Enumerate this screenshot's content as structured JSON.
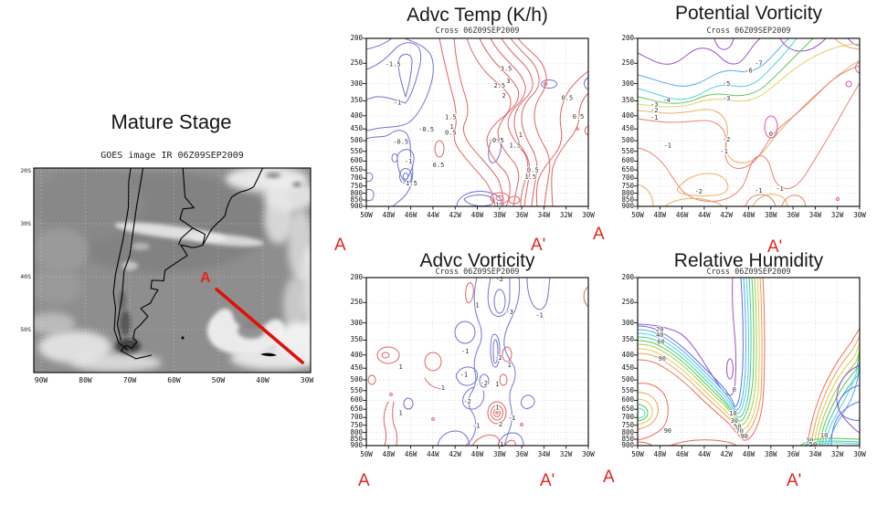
{
  "chart_data": {
    "satellite": {
      "type": "satellite-image",
      "panel_label": "Mature Stage",
      "title": "GOES image IR 06Z09SEP2009",
      "a_label": "A",
      "x_ticks": [
        {
          "label": "90W",
          "lon": 90
        },
        {
          "label": "80W",
          "lon": 80
        },
        {
          "label": "70W",
          "lon": 70
        },
        {
          "label": "60W",
          "lon": 60
        },
        {
          "label": "50W",
          "lon": 50
        },
        {
          "label": "40W",
          "lon": 40
        },
        {
          "label": "30W",
          "lon": 30
        }
      ],
      "y_ticks": [
        {
          "label": "20S",
          "lat": 20
        },
        {
          "label": "30S",
          "lat": 30
        },
        {
          "label": "40S",
          "lat": 40
        },
        {
          "label": "50S",
          "lat": 50
        }
      ],
      "line": {
        "color": "#e01008",
        "from": {
          "lon": 50.4,
          "lat": 42.4
        },
        "to": {
          "lon": 31.0,
          "lat": 56.2
        }
      }
    },
    "cross_axes": {
      "x_ticks": [
        {
          "label": "50W",
          "lon": 50
        },
        {
          "label": "48W",
          "lon": 48
        },
        {
          "label": "46W",
          "lon": 46
        },
        {
          "label": "44W",
          "lon": 44
        },
        {
          "label": "42W",
          "lon": 42
        },
        {
          "label": "40W",
          "lon": 40
        },
        {
          "label": "38W",
          "lon": 38
        },
        {
          "label": "36W",
          "lon": 36
        },
        {
          "label": "34W",
          "lon": 34
        },
        {
          "label": "32W",
          "lon": 32
        },
        {
          "label": "30W",
          "lon": 30
        }
      ],
      "y_ticks": [
        200,
        250,
        300,
        350,
        400,
        450,
        500,
        550,
        600,
        650,
        700,
        750,
        800,
        850,
        900
      ]
    },
    "advc_temp": {
      "type": "contour-cross-section",
      "title": "Advc Temp (K/h)",
      "subtitle": "Cross 06Z09SEP2009",
      "endpoint_left": "A",
      "endpoint_right": "A'",
      "levels": {
        "-1.5": "#7373d2",
        "-1": "#7373d2",
        "-0.5": "#7373d2",
        "0.5": "#e06363",
        "1": "#e06363",
        "1.5": "#e06363",
        "2": "#e06363",
        "2.5": "#e06363",
        "3": "#e06363",
        "3.5": "#e06363"
      },
      "contour_labels": [
        {
          "v": "-1.5",
          "lon": 47.6,
          "p": 252
        },
        {
          "v": "-1",
          "lon": 47.2,
          "p": 355
        },
        {
          "v": "-0.5",
          "lon": 44.6,
          "p": 452
        },
        {
          "v": "-0.5",
          "lon": 46.9,
          "p": 505
        },
        {
          "v": "-1",
          "lon": 46.2,
          "p": 600
        },
        {
          "v": "-1.5",
          "lon": 46.1,
          "p": 730
        },
        {
          "v": "0.5",
          "lon": 43.5,
          "p": 620
        },
        {
          "v": "1.5",
          "lon": 42.4,
          "p": 405
        },
        {
          "v": "1",
          "lon": 42.3,
          "p": 440
        },
        {
          "v": "0.5",
          "lon": 42.4,
          "p": 465
        },
        {
          "v": "2",
          "lon": 37.6,
          "p": 333
        },
        {
          "v": "2.5",
          "lon": 38.0,
          "p": 305
        },
        {
          "v": "3",
          "lon": 37.2,
          "p": 293
        },
        {
          "v": "3.5",
          "lon": 37.4,
          "p": 262
        },
        {
          "v": "-0.5",
          "lon": 38.3,
          "p": 497
        },
        {
          "v": "1",
          "lon": 36.1,
          "p": 475
        },
        {
          "v": "1.5",
          "lon": 36.6,
          "p": 520
        },
        {
          "v": "0.5",
          "lon": 35.0,
          "p": 650
        },
        {
          "v": "1.5",
          "lon": 35.2,
          "p": 692
        },
        {
          "v": "0.5",
          "lon": 31.9,
          "p": 340
        },
        {
          "v": "0.5",
          "lon": 30.9,
          "p": 402
        },
        {
          "v": "1",
          "lon": 38.2,
          "p": 885
        }
      ]
    },
    "pot_vort": {
      "type": "contour-cross-section",
      "title": "Potential Vorticity",
      "subtitle": "Cross 06Z09SEP2009",
      "endpoint_left": "A",
      "endpoint_right": "A'",
      "levels": {
        "-7": "#9b50d0",
        "-6": "#5ba8f0",
        "-5": "#52cfe0",
        "-4": "#5bc85b",
        "-3": "#e6d05e",
        "-2": "#eab066",
        "-1": "#ef8078",
        "0": "#e84fa8"
      },
      "contour_labels": [
        {
          "v": "-7",
          "lon": 39.1,
          "p": 250
        },
        {
          "v": "-6",
          "lon": 40.0,
          "p": 267
        },
        {
          "v": "-5",
          "lon": 42.0,
          "p": 300
        },
        {
          "v": "-4",
          "lon": 47.4,
          "p": 348
        },
        {
          "v": "-3",
          "lon": 48.5,
          "p": 361
        },
        {
          "v": "-2",
          "lon": 48.5,
          "p": 381
        },
        {
          "v": "-1",
          "lon": 48.5,
          "p": 406
        },
        {
          "v": "-3",
          "lon": 42.0,
          "p": 342
        },
        {
          "v": "-2",
          "lon": 42.0,
          "p": 494
        },
        {
          "v": "-1",
          "lon": 42.2,
          "p": 550
        },
        {
          "v": "-1",
          "lon": 47.3,
          "p": 520
        },
        {
          "v": "0",
          "lon": 38.0,
          "p": 470
        },
        {
          "v": "-2",
          "lon": 44.5,
          "p": 787
        },
        {
          "v": "-1",
          "lon": 39.1,
          "p": 782
        },
        {
          "v": "-1",
          "lon": 37.2,
          "p": 768
        }
      ]
    },
    "advc_vort": {
      "type": "contour-cross-section",
      "title": "Advc Vorticity",
      "subtitle": "Cross 06Z09SEP2009",
      "endpoint_left": "A",
      "endpoint_right": "A'",
      "levels": {
        "-3": "#7373d2",
        "-2": "#7373d2",
        "-1": "#7373d2",
        "1": "#e06363",
        "2": "#e06363",
        "3": "#e06363"
      },
      "contour_labels": [
        {
          "v": "-2",
          "lon": 38.0,
          "p": 203
        },
        {
          "v": "1",
          "lon": 40.0,
          "p": 256
        },
        {
          "v": "-3",
          "lon": 37.1,
          "p": 272
        },
        {
          "v": "-1",
          "lon": 34.4,
          "p": 280
        },
        {
          "v": "-1",
          "lon": 41.1,
          "p": 386
        },
        {
          "v": "-2",
          "lon": 38.1,
          "p": 410
        },
        {
          "v": "1",
          "lon": 37.1,
          "p": 437
        },
        {
          "v": "1",
          "lon": 46.9,
          "p": 444
        },
        {
          "v": "-1",
          "lon": 41.2,
          "p": 477
        },
        {
          "v": "-2",
          "lon": 39.4,
          "p": 515
        },
        {
          "v": "1",
          "lon": 38.2,
          "p": 518
        },
        {
          "v": "1",
          "lon": 43.1,
          "p": 537
        },
        {
          "v": "-2",
          "lon": 40.9,
          "p": 607
        },
        {
          "v": "1",
          "lon": 46.9,
          "p": 672
        },
        {
          "v": "1",
          "lon": 38.2,
          "p": 640
        },
        {
          "v": "-1",
          "lon": 36.9,
          "p": 702
        },
        {
          "v": "2",
          "lon": 37.9,
          "p": 743
        },
        {
          "v": "-1",
          "lon": 40.1,
          "p": 752
        },
        {
          "v": "1",
          "lon": 37.8,
          "p": 890
        }
      ]
    },
    "rel_hum": {
      "type": "contour-cross-section",
      "title": "Relative Humidity",
      "subtitle": "Cross 06Z09SEP2009",
      "endpoint_left": "A",
      "endpoint_right": "A'",
      "levels": {
        "0": "#9b50d0",
        "10": "#5570e8",
        "20": "#55aaf5",
        "30": "#45d5e5",
        "40": "#45cc95",
        "50": "#55c855",
        "60": "#a0d040",
        "70": "#e0cc50",
        "80": "#eda055",
        "90": "#ef6a55"
      },
      "contour_labels": [
        {
          "v": "20",
          "lon": 48.0,
          "p": 318
        },
        {
          "v": "40",
          "lon": 48.0,
          "p": 334
        },
        {
          "v": "60",
          "lon": 47.9,
          "p": 354
        },
        {
          "v": "90",
          "lon": 47.8,
          "p": 412
        },
        {
          "v": "90",
          "lon": 47.3,
          "p": 787
        },
        {
          "v": "0",
          "lon": 41.3,
          "p": 545
        },
        {
          "v": "10",
          "lon": 41.4,
          "p": 675
        },
        {
          "v": "30",
          "lon": 41.3,
          "p": 718
        },
        {
          "v": "50",
          "lon": 41.0,
          "p": 760
        },
        {
          "v": "70",
          "lon": 40.8,
          "p": 790
        },
        {
          "v": "90",
          "lon": 40.4,
          "p": 828
        },
        {
          "v": "10",
          "lon": 33.2,
          "p": 820
        },
        {
          "v": "30",
          "lon": 34.5,
          "p": 856
        },
        {
          "v": "50",
          "lon": 34.2,
          "p": 890
        }
      ]
    }
  }
}
